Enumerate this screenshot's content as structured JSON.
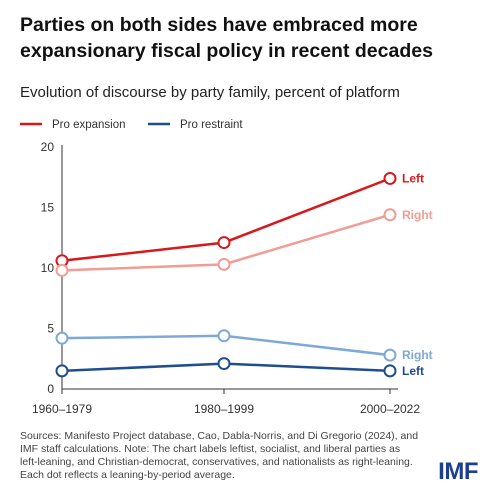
{
  "title": "Parties on both sides have embraced more expansionary fiscal policy in recent decades",
  "subtitle": "Evolution of discourse by party family, percent of platform",
  "source": "Sources: Manifesto Project database, Cao, Dabla-Norris, and Di Gregorio (2024), and IMF staff calculations. Note: The chart labels leftist, socialist, and liberal parties as left-leaning, and Christian-democrat, conservatives, and nationalists as right-leaning. Each dot reflects a leaning-by-period average.",
  "logo": "IMF",
  "chart_data": {
    "type": "line",
    "categories": [
      "1960–1979",
      "1980–1999",
      "2000–2022"
    ],
    "ylim": [
      0,
      20
    ],
    "yticks": [
      0,
      5,
      10,
      15,
      20
    ],
    "grid": false,
    "legend": [
      {
        "label": "Pro expansion",
        "color": "#d7191c"
      },
      {
        "label": "Pro restraint",
        "color": "#1f4e8c"
      }
    ],
    "series": [
      {
        "name": "Left",
        "group": "Pro expansion",
        "values": [
          10.6,
          12.1,
          17.4
        ],
        "color": "#d7191c",
        "label_color": "#d7191c"
      },
      {
        "name": "Right",
        "group": "Pro expansion",
        "values": [
          9.8,
          10.3,
          14.4
        ],
        "color": "#ef9d95",
        "label_color": "#ef9d95"
      },
      {
        "name": "Right",
        "group": "Pro restraint",
        "values": [
          4.2,
          4.4,
          2.8
        ],
        "color": "#7ea9d6",
        "label_color": "#7ea9d6"
      },
      {
        "name": "Left",
        "group": "Pro restraint",
        "values": [
          1.5,
          2.1,
          1.5
        ],
        "color": "#1f4e8c",
        "label_color": "#1f4e8c"
      }
    ]
  }
}
